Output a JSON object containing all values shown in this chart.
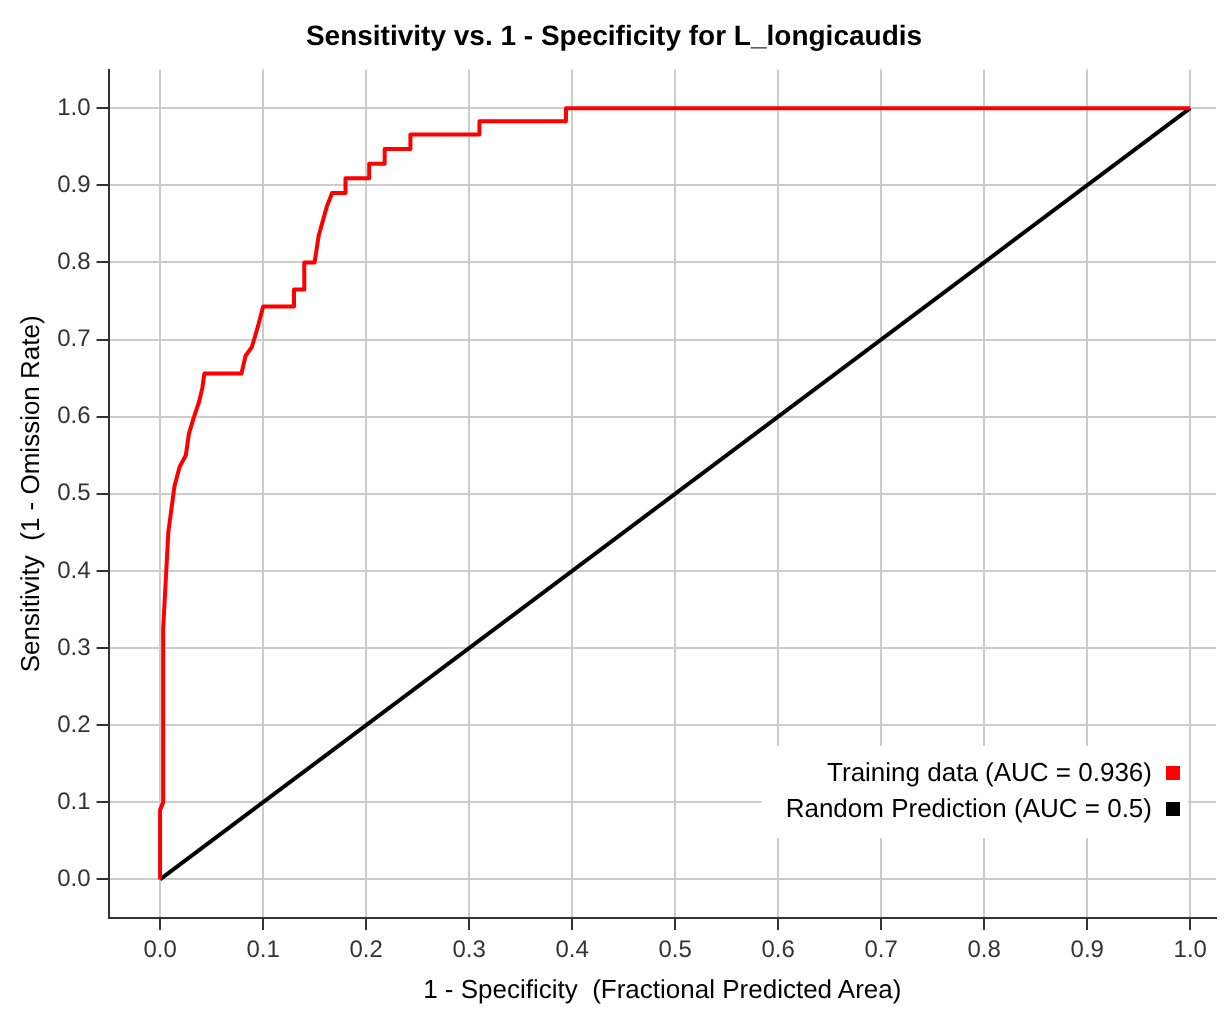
{
  "chart_data": {
    "type": "line",
    "title": "Sensitivity vs. 1 - Specificity for L_longicaudis",
    "xlabel": "1 - Specificity  (Fractional Predicted Area)",
    "ylabel": "Sensitivity  (1 - Omission Rate)",
    "xlim": [
      -0.05,
      1.025
    ],
    "ylim": [
      -0.05,
      1.05
    ],
    "xticks": [
      {
        "value": 0,
        "label": "0.0"
      },
      0.1,
      0.2,
      0.3,
      0.4,
      0.5,
      0.6,
      0.7,
      0.8,
      0.9,
      {
        "value": 1,
        "label": "1.0"
      }
    ],
    "yticks": [
      {
        "value": 0,
        "label": "0.0"
      },
      0.1,
      0.2,
      0.3,
      0.4,
      0.5,
      0.6,
      0.7,
      0.8,
      0.9,
      {
        "value": 1,
        "label": "1.0"
      }
    ],
    "grid": true,
    "legend": "bottom right",
    "marker": "none",
    "line_style": "solid",
    "series": [
      {
        "name": "Training data (AUC = 0.936)",
        "color": "#ff0000",
        "x": [
          0,
          0,
          0.003,
          0.003,
          0.006,
          0.008,
          0.014,
          0.019,
          0.025,
          0.028,
          0.033,
          0.038,
          0.041,
          0.043,
          0.079,
          0.083,
          0.089,
          0.095,
          0.1,
          0.13,
          0.13,
          0.14,
          0.14,
          0.15,
          0.154,
          0.162,
          0.167,
          0.18,
          0.18,
          0.203,
          0.203,
          0.218,
          0.218,
          0.243,
          0.243,
          0.31,
          0.31,
          0.394,
          0.394,
          1
        ],
        "values": [
          0,
          0.09,
          0.1,
          0.325,
          0.4,
          0.45,
          0.51,
          0.535,
          0.55,
          0.578,
          0.6,
          0.62,
          0.637,
          0.656,
          0.656,
          0.679,
          0.69,
          0.717,
          0.743,
          0.743,
          0.765,
          0.765,
          0.8,
          0.8,
          0.835,
          0.873,
          0.89,
          0.89,
          0.909,
          0.909,
          0.928,
          0.928,
          0.947,
          0.947,
          0.966,
          0.966,
          0.983,
          0.983,
          1,
          1
        ]
      },
      {
        "name": "Random Prediction (AUC = 0.5)",
        "color": "#000000",
        "x": [
          0,
          1
        ],
        "values": [
          0,
          1
        ]
      }
    ]
  }
}
